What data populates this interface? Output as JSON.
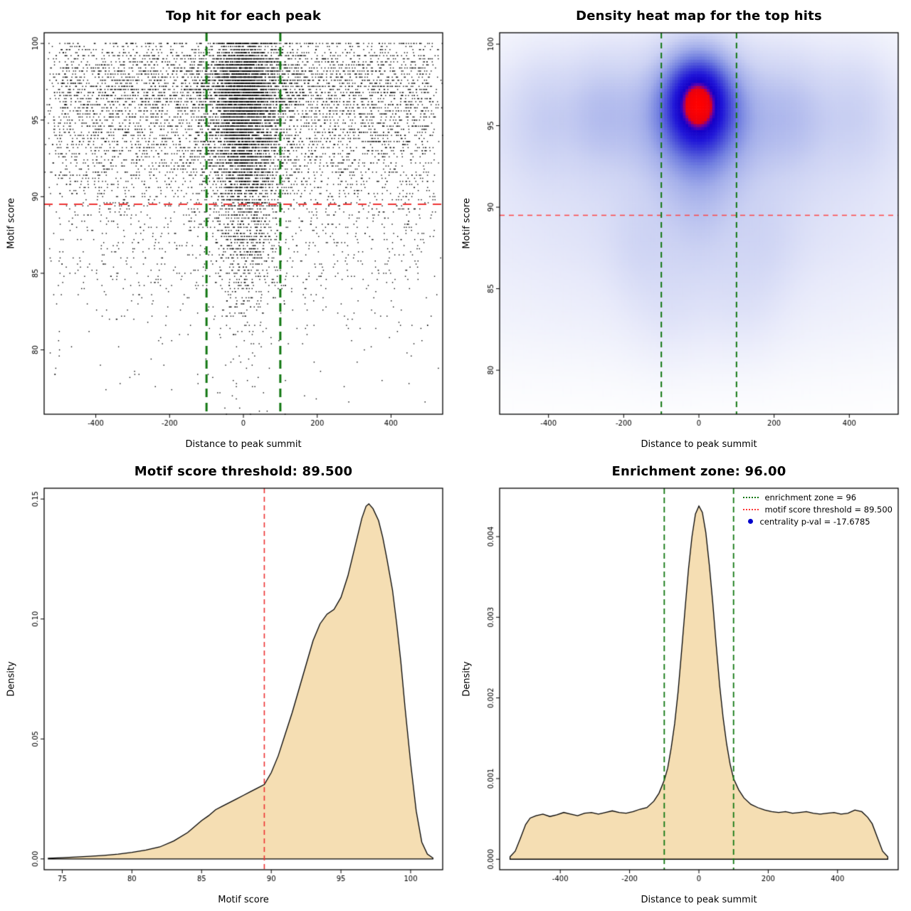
{
  "chart_data": [
    {
      "id": "top_hits_scatter",
      "type": "scatter",
      "title": "Top hit for each peak",
      "xlabel": "Distance to peak summit",
      "ylabel": "Motif score",
      "xlim": [
        -540,
        540
      ],
      "ylim": [
        75.8,
        100.7
      ],
      "x_ticks": {
        "values": [
          -400,
          -200,
          0,
          200,
          400
        ],
        "labels": [
          "-400",
          "-200",
          "0",
          "200",
          "400"
        ]
      },
      "y_ticks": {
        "values": [
          80,
          85,
          90,
          95,
          100
        ],
        "labels": [
          "80",
          "85",
          "90",
          "95",
          "100"
        ]
      },
      "n_points": 12000,
      "seed": 20240613,
      "point_color": "#000000",
      "point_size": 1.4,
      "y_quantum": 0.2,
      "score_cap": 100,
      "x_source_id": "summit_distance_density",
      "y_source_id": "motif_score_density",
      "lines": [
        {
          "orient": "h",
          "value": 89.5,
          "color": "#ee3333",
          "dash": [
            12,
            9
          ],
          "width": 2
        },
        {
          "orient": "v",
          "value": -100,
          "color": "#117711",
          "dash": [
            12,
            8
          ],
          "width": 3
        },
        {
          "orient": "v",
          "value": 100,
          "color": "#117711",
          "dash": [
            12,
            8
          ],
          "width": 3
        }
      ]
    },
    {
      "id": "top_hits_heatmap",
      "type": "heatmap",
      "title": "Density heat map for the top hits",
      "xlabel": "Distance to peak summit",
      "ylabel": "Motif score",
      "xlim": [
        -530,
        530
      ],
      "ylim": [
        77.3,
        100.7
      ],
      "x_ticks": {
        "values": [
          -400,
          -200,
          0,
          200,
          400
        ],
        "labels": [
          "-400",
          "-200",
          "0",
          "200",
          "400"
        ]
      },
      "y_ticks": {
        "values": [
          80,
          85,
          90,
          95,
          100
        ],
        "labels": [
          "80",
          "85",
          "90",
          "95",
          "100"
        ]
      },
      "grid": {
        "nx": 150,
        "ny": 130
      },
      "gamma": 0.6,
      "kernels": [
        {
          "w": 1.3,
          "x": -3,
          "y": 96.8,
          "sx": 60,
          "sy": 1.9
        },
        {
          "w": 0.6,
          "x": 3,
          "y": 95.2,
          "sx": 80,
          "sy": 2.3
        },
        {
          "w": 0.32,
          "x": 0,
          "y": 96.3,
          "sx": 310,
          "sy": 2.7
        },
        {
          "w": 0.2,
          "x": 0,
          "y": 93.4,
          "sx": 430,
          "sy": 3.0
        },
        {
          "w": 0.22,
          "x": 0,
          "y": 91.3,
          "sx": 75,
          "sy": 3.6
        },
        {
          "w": 0.12,
          "x": 0,
          "y": 88.4,
          "sx": 460,
          "sy": 2.3
        },
        {
          "w": 0.07,
          "x": 0,
          "y": 84.3,
          "sx": 470,
          "sy": 2.6
        },
        {
          "w": 0.14,
          "x": -265,
          "y": 96.0,
          "sx": 60,
          "sy": 2.3
        },
        {
          "w": 0.13,
          "x": 245,
          "y": 95.6,
          "sx": 65,
          "sy": 2.4
        },
        {
          "w": 0.12,
          "x": -425,
          "y": 95.6,
          "sx": 55,
          "sy": 2.6
        },
        {
          "w": 0.11,
          "x": 430,
          "y": 96.1,
          "sx": 55,
          "sy": 2.5
        },
        {
          "w": 0.09,
          "x": -160,
          "y": 87.6,
          "sx": 55,
          "sy": 2.2
        },
        {
          "w": 0.09,
          "x": 180,
          "y": 88.0,
          "sx": 60,
          "sy": 2.3
        },
        {
          "w": 0.07,
          "x": -80,
          "y": 83.8,
          "sx": 70,
          "sy": 2.2
        },
        {
          "w": 0.07,
          "x": 120,
          "y": 84.2,
          "sx": 70,
          "sy": 2.2
        }
      ],
      "colormap": [
        {
          "t": 0.0,
          "color": "#ffffff"
        },
        {
          "t": 0.05,
          "color": "#f7f8fd"
        },
        {
          "t": 0.15,
          "color": "#e8eafa"
        },
        {
          "t": 0.3,
          "color": "#ccd2f3"
        },
        {
          "t": 0.45,
          "color": "#a3aeea"
        },
        {
          "t": 0.58,
          "color": "#7280e0"
        },
        {
          "t": 0.7,
          "color": "#4246d8"
        },
        {
          "t": 0.8,
          "color": "#2016d8"
        },
        {
          "t": 0.88,
          "color": "#1500c8"
        },
        {
          "t": 0.915,
          "color": "#6a00a8"
        },
        {
          "t": 0.94,
          "color": "#e80010"
        },
        {
          "t": 1.0,
          "color": "#ff0000"
        }
      ],
      "lines": [
        {
          "orient": "h",
          "value": 89.5,
          "color": "#ff4444",
          "dash": [
            7,
            6
          ],
          "width": 1.4
        },
        {
          "orient": "v",
          "value": -100,
          "color": "#117711",
          "dash": [
            8,
            6
          ],
          "width": 2
        },
        {
          "orient": "v",
          "value": 100,
          "color": "#117711",
          "dash": [
            8,
            6
          ],
          "width": 2
        }
      ]
    },
    {
      "id": "motif_score_density",
      "type": "area",
      "title": "Motif score threshold: 89.500",
      "xlabel": "Motif score",
      "ylabel": "Density",
      "xlim": [
        73.7,
        102.3
      ],
      "ylim": [
        -0.0045,
        0.1545
      ],
      "x_ticks": {
        "values": [
          75,
          80,
          85,
          90,
          95,
          100
        ],
        "labels": [
          "75",
          "80",
          "85",
          "90",
          "95",
          "100"
        ]
      },
      "y_ticks": {
        "values": [
          0,
          0.05,
          0.1,
          0.15
        ],
        "labels": [
          "0.00",
          "0.05",
          "0.10",
          "0.15"
        ]
      },
      "fill_color": "#f5deb3",
      "line_color": "#000000",
      "curve": {
        "x": [
          74,
          75,
          76,
          77,
          78,
          79,
          80,
          81,
          82,
          83,
          84,
          85,
          85.5,
          86,
          86.5,
          87,
          87.5,
          88,
          88.5,
          89,
          89.5,
          90,
          90.5,
          91,
          91.5,
          92,
          92.5,
          93,
          93.5,
          94,
          94.5,
          95,
          95.5,
          96,
          96.5,
          96.8,
          97,
          97.3,
          97.7,
          98,
          98.3,
          98.7,
          99,
          99.3,
          99.6,
          100,
          100.4,
          100.8,
          101.2,
          101.6
        ],
        "y": [
          0.0003,
          0.0005,
          0.0008,
          0.0011,
          0.0015,
          0.002,
          0.0027,
          0.0037,
          0.005,
          0.0075,
          0.011,
          0.016,
          0.018,
          0.0205,
          0.022,
          0.0235,
          0.025,
          0.0265,
          0.028,
          0.0295,
          0.031,
          0.036,
          0.043,
          0.052,
          0.061,
          0.071,
          0.081,
          0.091,
          0.098,
          0.102,
          0.104,
          0.109,
          0.118,
          0.13,
          0.142,
          0.147,
          0.148,
          0.146,
          0.141,
          0.134,
          0.125,
          0.112,
          0.098,
          0.082,
          0.063,
          0.04,
          0.02,
          0.007,
          0.002,
          0.0004
        ]
      },
      "lines": [
        {
          "orient": "v",
          "value": 89.5,
          "color": "#ee3333",
          "dash": [
            7,
            5
          ],
          "width": 1.6
        }
      ]
    },
    {
      "id": "summit_distance_density",
      "type": "area",
      "title": "Enrichment zone: 96.00",
      "xlabel": "Distance to peak summit",
      "ylabel": "Density",
      "xlim": [
        -575,
        575
      ],
      "ylim": [
        -0.00013,
        0.0046
      ],
      "x_ticks": {
        "values": [
          -400,
          -200,
          0,
          200,
          400
        ],
        "labels": [
          "-400",
          "-200",
          "0",
          "200",
          "400"
        ]
      },
      "y_ticks": {
        "values": [
          0,
          0.001,
          0.002,
          0.003,
          0.004
        ],
        "labels": [
          "0.000",
          "0.001",
          "0.002",
          "0.003",
          "0.004"
        ]
      },
      "fill_color": "#f5deb3",
      "line_color": "#000000",
      "curve": {
        "x": [
          -545,
          -530,
          -515,
          -500,
          -487,
          -470,
          -450,
          -430,
          -410,
          -390,
          -370,
          -350,
          -330,
          -310,
          -290,
          -270,
          -250,
          -230,
          -210,
          -190,
          -170,
          -150,
          -130,
          -115,
          -100,
          -90,
          -80,
          -70,
          -60,
          -50,
          -40,
          -30,
          -20,
          -10,
          0,
          10,
          20,
          30,
          40,
          50,
          60,
          70,
          80,
          90,
          100,
          115,
          130,
          150,
          170,
          190,
          210,
          230,
          250,
          270,
          290,
          310,
          330,
          350,
          370,
          390,
          410,
          430,
          450,
          470,
          487,
          500,
          515,
          530,
          545
        ],
        "y": [
          3e-05,
          0.0001,
          0.00026,
          0.00043,
          0.00051,
          0.00054,
          0.00056,
          0.00053,
          0.00055,
          0.00058,
          0.00056,
          0.00054,
          0.00057,
          0.00058,
          0.00056,
          0.00058,
          0.0006,
          0.00058,
          0.00057,
          0.00059,
          0.00062,
          0.00064,
          0.00072,
          0.00082,
          0.00098,
          0.00113,
          0.00138,
          0.00168,
          0.00208,
          0.00258,
          0.0031,
          0.0036,
          0.004,
          0.00428,
          0.00438,
          0.0043,
          0.00405,
          0.00365,
          0.00318,
          0.00265,
          0.00215,
          0.00175,
          0.00143,
          0.00118,
          0.001,
          0.00086,
          0.00076,
          0.00068,
          0.00064,
          0.00061,
          0.00059,
          0.00058,
          0.00059,
          0.00057,
          0.00058,
          0.00059,
          0.00057,
          0.00056,
          0.00057,
          0.00058,
          0.00056,
          0.00057,
          0.00061,
          0.00059,
          0.00052,
          0.00044,
          0.00027,
          0.0001,
          3e-05
        ]
      },
      "lines": [
        {
          "orient": "v",
          "value": -100,
          "color": "#117711",
          "dash": [
            8,
            5
          ],
          "width": 1.8
        },
        {
          "orient": "v",
          "value": 100,
          "color": "#117711",
          "dash": [
            8,
            5
          ],
          "width": 1.8
        }
      ],
      "legend": {
        "entries": [
          {
            "marker": "dotted-line",
            "color": "#117711",
            "label": "enrichment zone = 96"
          },
          {
            "marker": "dotted-line",
            "color": "#ff3333",
            "label": "motif score threshold = 89.500"
          },
          {
            "marker": "dot",
            "color": "#0000cc",
            "label": "centrality p-val = -17.6785"
          }
        ]
      }
    }
  ]
}
